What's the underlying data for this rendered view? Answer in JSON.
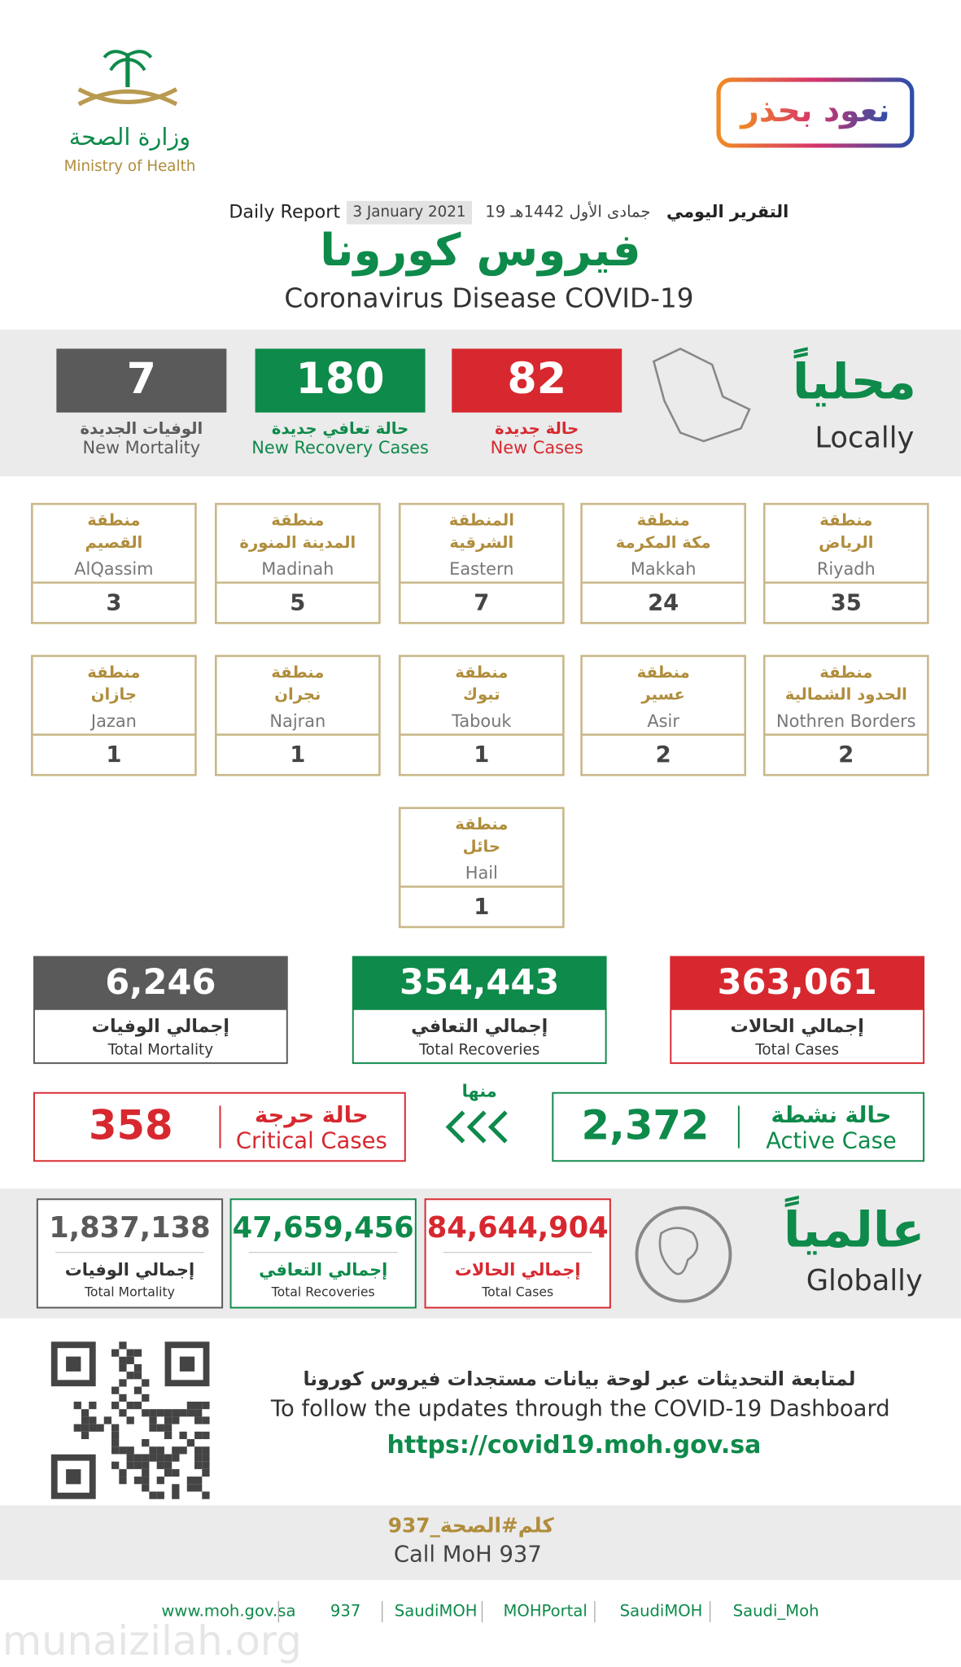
{
  "header": {
    "ministry_ar": "وزارة الصحة",
    "ministry_en": "Ministry of Health",
    "campaign": "نعود بحذر",
    "report_label_ar": "التقرير اليومي",
    "hijri_date": "19 جمادى الأول 1442هـ",
    "gregorian_date": "3 January 2021",
    "report_label_en": "Daily Report",
    "title_ar": "فيروس كورونا",
    "title_en": "Coronavirus Disease COVID-19"
  },
  "local": {
    "title_ar": "محلياً",
    "title_en": "Locally",
    "stats": [
      {
        "value": "82",
        "label_ar": "حالة جديدة",
        "label_en": "New Cases"
      },
      {
        "value": "180",
        "label_ar": "حالة تعافي جديدة",
        "label_en": "New Recovery Cases"
      },
      {
        "value": "7",
        "label_ar": "الوفيات الجديدة",
        "label_en": "New Mortality"
      }
    ]
  },
  "regions": [
    {
      "prefix": "منطقة",
      "name_ar": "الرياض",
      "name_en": "Riyadh",
      "value": "35"
    },
    {
      "prefix": "منطقة",
      "name_ar": "مكة المكرمة",
      "name_en": "Makkah",
      "value": "24"
    },
    {
      "prefix": "المنطقة",
      "name_ar": "الشرقية",
      "name_en": "Eastern",
      "value": "7"
    },
    {
      "prefix": "منطقة",
      "name_ar": "المدينة المنورة",
      "name_en": "Madinah",
      "value": "5"
    },
    {
      "prefix": "منطقة",
      "name_ar": "القصيم",
      "name_en": "AlQassim",
      "value": "3"
    },
    {
      "prefix": "منطقة",
      "name_ar": "الحدود الشمالية",
      "name_en": "Nothren Borders",
      "value": "2"
    },
    {
      "prefix": "منطقة",
      "name_ar": "عسير",
      "name_en": "Asir",
      "value": "2"
    },
    {
      "prefix": "منطقة",
      "name_ar": "تبوك",
      "name_en": "Tabouk",
      "value": "1"
    },
    {
      "prefix": "منطقة",
      "name_ar": "نجران",
      "name_en": "Najran",
      "value": "1"
    },
    {
      "prefix": "منطقة",
      "name_ar": "جازان",
      "name_en": "Jazan",
      "value": "1"
    },
    {
      "prefix": "منطقة",
      "name_ar": "حائل",
      "name_en": "Hail",
      "value": "1"
    }
  ],
  "totals": [
    {
      "value": "363,061",
      "label_ar": "إجمالي الحالات",
      "label_en": "Total Cases"
    },
    {
      "value": "354,443",
      "label_ar": "إجمالي التعافي",
      "label_en": "Total Recoveries"
    },
    {
      "value": "6,246",
      "label_ar": "إجمالي الوفيات",
      "label_en": "Total Mortality"
    }
  ],
  "active": {
    "value": "2,372",
    "label_ar": "حالة نشطة",
    "label_en": "Active Case"
  },
  "of_which": "منها",
  "critical": {
    "value": "358",
    "label_ar": "حالة حرجة",
    "label_en": "Critical Cases"
  },
  "global": {
    "title_ar": "عالمياً",
    "title_en": "Globally",
    "stats": [
      {
        "value": "84,644,904",
        "label_ar": "إجمالي الحالات",
        "label_en": "Total Cases"
      },
      {
        "value": "47,659,456",
        "label_ar": "إجمالي التعافي",
        "label_en": "Total Recoveries"
      },
      {
        "value": "1,837,138",
        "label_ar": "إجمالي الوفيات",
        "label_en": "Total Mortality"
      }
    ]
  },
  "dashboard": {
    "text_ar": "لمتابعة التحديثات عبر لوحة بيانات مستجدات فيروس كورونا",
    "text_en": "To follow the updates through the COVID-19 Dashboard",
    "url": "https://covid19.moh.gov.sa"
  },
  "call": {
    "ar": "كلم#الصحة_937",
    "en": "Call MoH 937"
  },
  "footer": [
    "www.moh.gov.sa",
    "937",
    "SaudiMOH",
    "MOHPortal",
    "SaudiMOH",
    "Saudi_Moh"
  ],
  "watermark": "munaizilah.org"
}
